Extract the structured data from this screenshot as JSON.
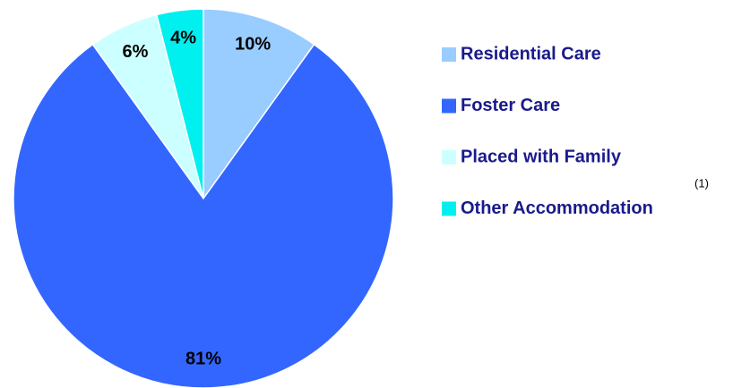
{
  "chart_data": {
    "type": "pie",
    "categories": [
      "Residential Care",
      "Foster Care",
      "Placed with Family",
      "Other Accommodation"
    ],
    "values": [
      10,
      81,
      6,
      4
    ],
    "value_labels": [
      "10%",
      "81%",
      "6%",
      "4%"
    ],
    "colors": [
      "#99ccff",
      "#3366ff",
      "#ccffff",
      "#00f0f0"
    ],
    "annotations": [
      "(1)"
    ]
  }
}
